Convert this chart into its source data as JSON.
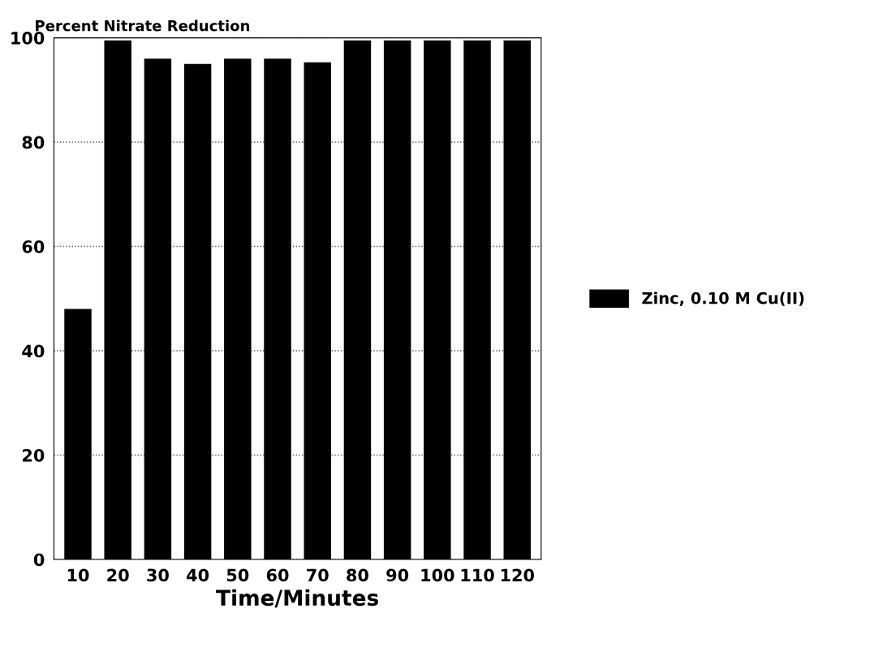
{
  "chart_data": {
    "type": "bar",
    "title": "Percent Nitrate Reduction",
    "xlabel": "Time/Minutes",
    "categories": [
      "10",
      "20",
      "30",
      "40",
      "50",
      "60",
      "70",
      "80",
      "90",
      "100",
      "110",
      "120"
    ],
    "series": [
      {
        "name": "Zinc, 0.10 M Cu(II)",
        "color": "#000000",
        "values": [
          48,
          99.5,
          96,
          95,
          96,
          96,
          95.3,
          99.5,
          99.5,
          99.5,
          99.5,
          99.5
        ]
      }
    ],
    "ylim": [
      0,
      100
    ],
    "yticks": [
      0,
      20,
      40,
      60,
      80,
      100
    ],
    "grid": "y",
    "legend": "right"
  }
}
